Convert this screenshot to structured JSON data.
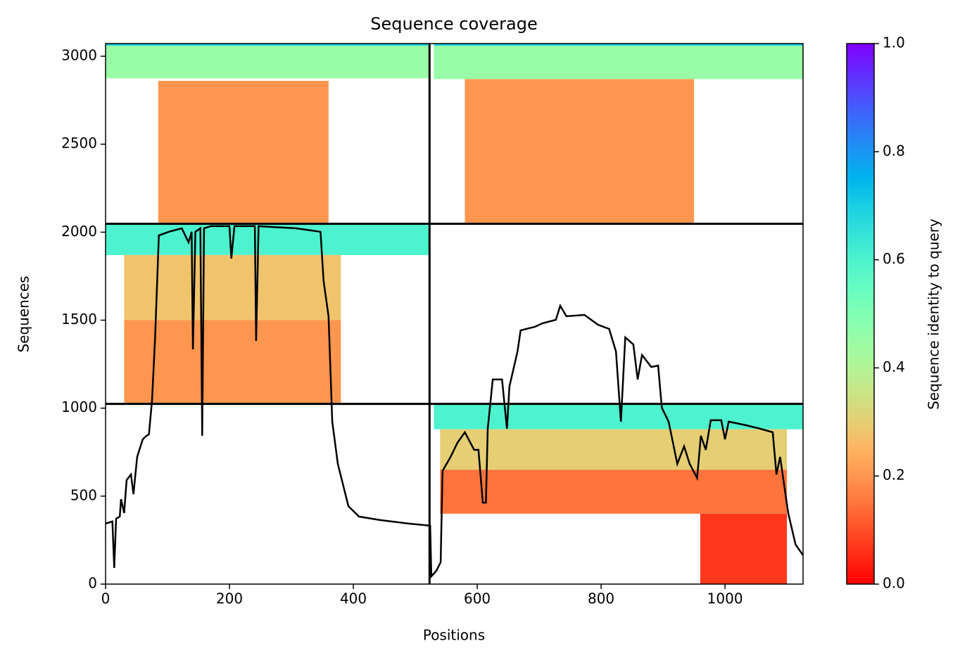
{
  "chart_data": {
    "type": "coverage",
    "title": "Sequence coverage",
    "x_label": "Positions",
    "y_label": "Sequences",
    "xlim": [
      0,
      1126
    ],
    "ylim": [
      0,
      3072
    ],
    "xticks": [
      0,
      200,
      400,
      600,
      800,
      1000
    ],
    "yticks": [
      0,
      500,
      1000,
      1500,
      2000,
      2500,
      3000
    ],
    "colormap": "rainbow_r",
    "clim": [
      0,
      1
    ],
    "colorbar_label": "Sequence identity to query",
    "colorbar_ticks": [
      {
        "value": 0,
        "label": "0.0"
      },
      0.2,
      0.4,
      0.6,
      0.8,
      {
        "value": 1,
        "label": "1.0"
      }
    ],
    "hlines": [
      1024,
      2048
    ],
    "vlines": [
      523
    ],
    "regions": [
      {
        "x": [
          0,
          523
        ],
        "y": [
          2875,
          3060
        ],
        "identity": 0.45
      },
      {
        "x": [
          0,
          523
        ],
        "y": [
          3060,
          3072
        ],
        "identity": 0.7
      },
      {
        "x": [
          85,
          360
        ],
        "y": [
          2048,
          2860
        ],
        "identity": 0.2
      },
      {
        "x": [
          530,
          1126
        ],
        "y": [
          2870,
          3060
        ],
        "identity": 0.45
      },
      {
        "x": [
          530,
          1126
        ],
        "y": [
          3060,
          3072
        ],
        "identity": 0.7
      },
      {
        "x": [
          580,
          950
        ],
        "y": [
          2048,
          2870
        ],
        "identity": 0.2
      },
      {
        "x": [
          0,
          523
        ],
        "y": [
          1870,
          2048
        ],
        "identity": 0.6
      },
      {
        "x": [
          30,
          380
        ],
        "y": [
          1500,
          1870
        ],
        "identity": 0.28
      },
      {
        "x": [
          30,
          380
        ],
        "y": [
          1024,
          1500
        ],
        "identity": 0.2
      },
      {
        "x": [
          530,
          1126
        ],
        "y": [
          880,
          1024
        ],
        "identity": 0.6
      },
      {
        "x": [
          540,
          1100
        ],
        "y": [
          650,
          880
        ],
        "identity": 0.3
      },
      {
        "x": [
          540,
          1100
        ],
        "y": [
          400,
          650
        ],
        "identity": 0.15
      },
      {
        "x": [
          960,
          1100
        ],
        "y": [
          0,
          400
        ],
        "identity": 0.07
      }
    ],
    "series": [
      {
        "name": "coverage",
        "color": "#000000",
        "x": [
          0,
          11,
          14,
          17,
          23,
          25,
          30,
          34,
          41,
          45,
          51,
          60,
          66,
          70,
          75,
          80,
          86,
          102,
          123,
          134,
          139,
          141,
          145,
          153,
          156,
          159,
          170,
          200,
          203,
          208,
          241,
          243,
          247,
          307,
          347,
          352,
          360,
          366,
          375,
          392,
          409,
          443,
          489,
          524,
          526,
          534,
          541,
          544,
          557,
          568,
          580,
          595,
          602,
          609,
          614,
          617,
          625,
          640,
          648,
          652,
          665,
          670,
          693,
          705,
          727,
          734,
          744,
          773,
          795,
          813,
          824,
          832,
          839,
          852,
          859,
          866,
          881,
          892,
          898,
          909,
          916,
          923,
          934,
          943,
          955,
          961,
          969,
          977,
          994,
          1000,
          1006,
          1034,
          1057,
          1077,
          1083,
          1089,
          1102,
          1114,
          1126
        ],
        "values": [
          344,
          356,
          92,
          372,
          384,
          483,
          404,
          591,
          623,
          511,
          723,
          823,
          843,
          851,
          1043,
          1402,
          1982,
          2002,
          2022,
          1942,
          2002,
          1334,
          2002,
          2022,
          843,
          2022,
          2034,
          2034,
          1850,
          2034,
          2034,
          1382,
          2034,
          2022,
          2002,
          1722,
          1522,
          923,
          683,
          443,
          384,
          364,
          344,
          332,
          44,
          76,
          124,
          643,
          723,
          803,
          863,
          763,
          763,
          463,
          463,
          883,
          1163,
          1163,
          883,
          1123,
          1322,
          1442,
          1462,
          1482,
          1502,
          1582,
          1522,
          1530,
          1474,
          1450,
          1322,
          923,
          1402,
          1362,
          1163,
          1302,
          1234,
          1242,
          1003,
          923,
          803,
          683,
          783,
          683,
          603,
          843,
          763,
          931,
          931,
          823,
          923,
          903,
          883,
          863,
          623,
          723,
          404,
          224,
          164
        ]
      }
    ]
  }
}
